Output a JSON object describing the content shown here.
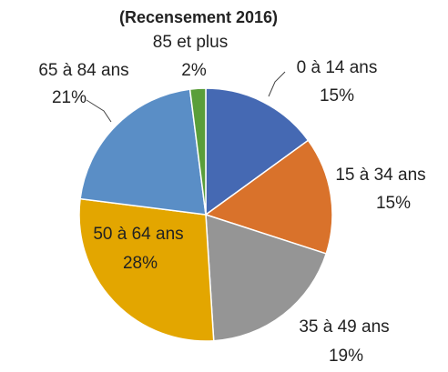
{
  "chart_data": {
    "type": "pie",
    "subtitle": "(Recensement 2016)",
    "categories": [
      "0 à 14 ans",
      "15 à 34 ans",
      "35 à 49 ans",
      "50 à 64 ans",
      "65 à 84 ans",
      "85 et plus"
    ],
    "values": [
      15,
      15,
      19,
      28,
      21,
      2
    ],
    "value_labels": [
      "15%",
      "15%",
      "19%",
      "28%",
      "21%",
      "2%"
    ],
    "colors": [
      "#4569b3",
      "#d9722b",
      "#959595",
      "#e3a600",
      "#5a8ec6",
      "#5a9e3a"
    ]
  }
}
